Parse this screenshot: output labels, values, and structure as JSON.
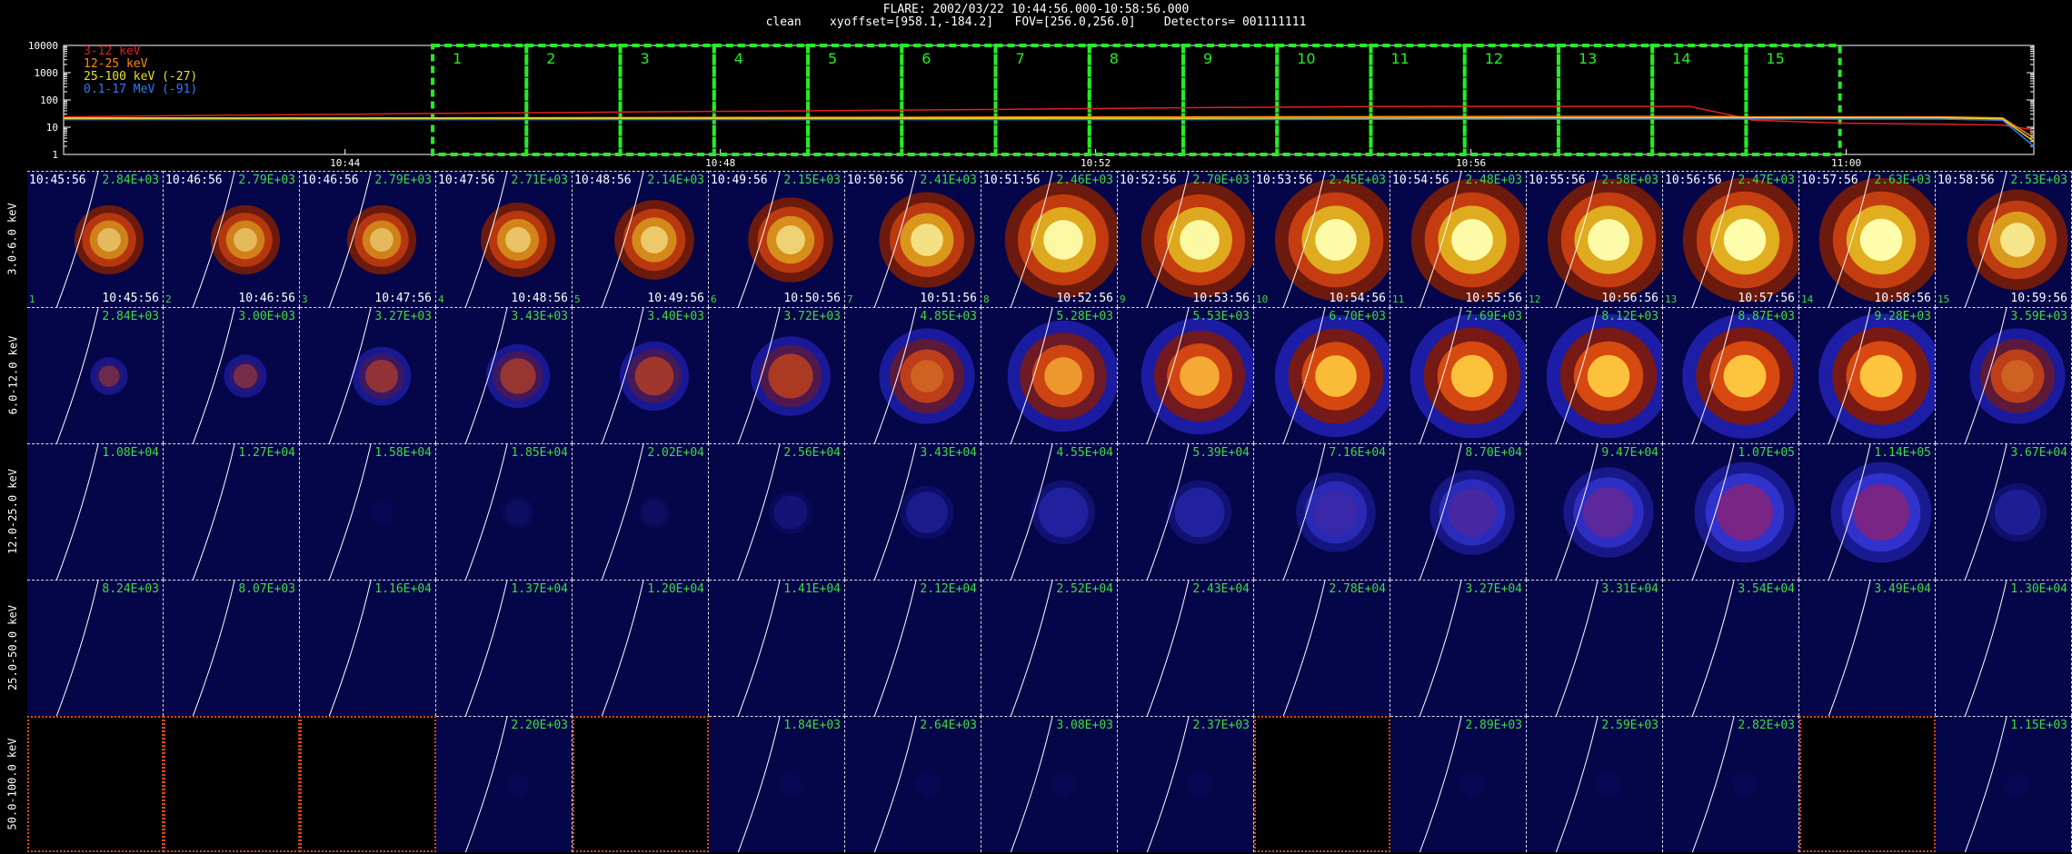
{
  "header": {
    "line1": "FLARE: 2002/03/22 10:44:56.000-10:58:56.000",
    "line2": "clean    xyoffset=[958.1,-184.2]   FOV=[256.0,256.0]    Detectors= 001111111"
  },
  "chart_data": [
    {
      "type": "line",
      "title": "",
      "xlabel": "",
      "ylabel": "",
      "yscale": "log",
      "ylim": [
        1,
        10000
      ],
      "ytick_labels": [
        "1",
        "10",
        "100",
        "1000",
        "10000"
      ],
      "xtick_labels": [
        "10:44",
        "10:48",
        "10:52",
        "10:56",
        "11:00"
      ],
      "xlim": [
        "10:41",
        "11:02"
      ],
      "legend_position": "top-left",
      "series": [
        {
          "name": "3-12 keV",
          "color": "#e02020",
          "x": [
            "10:41",
            "10:43",
            "10:45",
            "10:47",
            "10:49",
            "10:51",
            "10:53",
            "10:55",
            "10:57",
            "10:58:20",
            "10:58:50",
            "10:59",
            "11:00",
            "11:01",
            "11:01:40",
            "11:02"
          ],
          "y": [
            24,
            28,
            32,
            36,
            40,
            45,
            52,
            57,
            58,
            58,
            25,
            18,
            14,
            13,
            12,
            8
          ]
        },
        {
          "name": "12-25 keV",
          "color": "#ff8c00",
          "x": [
            "10:41",
            "10:45",
            "10:49",
            "10:53",
            "10:57",
            "10:58:30",
            "10:59",
            "11:01",
            "11:01:40",
            "11:02"
          ],
          "y": [
            22,
            22,
            23,
            24,
            25,
            25,
            24,
            24,
            22,
            4
          ]
        },
        {
          "name": "25-100 keV (-27)",
          "color": "#e8e020",
          "x": [
            "10:41",
            "10:45",
            "10:49",
            "10:53",
            "10:57",
            "10:59",
            "11:01",
            "11:01:40",
            "11:02"
          ],
          "y": [
            21,
            21,
            21,
            21,
            22,
            22,
            22,
            20,
            3
          ]
        },
        {
          "name": "0.1-17 MeV (-91)",
          "color": "#2a7cff",
          "x": [
            "10:41",
            "10:45",
            "10:49",
            "10:53",
            "10:57",
            "10:59",
            "11:01",
            "11:01:40",
            "11:02"
          ],
          "y": [
            19,
            19,
            19,
            19,
            20,
            20,
            20,
            18,
            2
          ]
        }
      ],
      "annotations": {
        "intervals": [
          "1",
          "2",
          "3",
          "4",
          "5",
          "6",
          "7",
          "8",
          "9",
          "10",
          "11",
          "12",
          "13",
          "14",
          "15"
        ],
        "interval_start": "10:44:56",
        "interval_minutes": 1,
        "interval_color": "#22ee22"
      }
    },
    {
      "type": "heatmap",
      "title": "",
      "rows": [
        {
          "label": "3.0-6.0 keV",
          "colormap": "yellow",
          "values": [
            "2.84E+03",
            "2.79E+03",
            "2.79E+03",
            "2.71E+03",
            "2.14E+03",
            "2.15E+03",
            "2.41E+03",
            "2.46E+03",
            "2.70E+03",
            "2.45E+03",
            "2.48E+03",
            "2.58E+03",
            "2.47E+03",
            "2.63E+03",
            "2.53E+03"
          ],
          "intensity": [
            0.45,
            0.45,
            0.45,
            0.5,
            0.55,
            0.6,
            0.7,
            0.9,
            0.9,
            0.95,
            0.95,
            0.95,
            0.97,
            0.97,
            0.75
          ]
        },
        {
          "label": "6.0-12.0 keV",
          "colormap": "red",
          "values": [
            "2.84E+03",
            "3.00E+03",
            "3.27E+03",
            "3.43E+03",
            "3.40E+03",
            "3.72E+03",
            "4.85E+03",
            "5.28E+03",
            "5.53E+03",
            "6.70E+03",
            "7.69E+03",
            "8.12E+03",
            "8.87E+03",
            "9.28E+03",
            "3.59E+03"
          ],
          "intensity": [
            0.15,
            0.2,
            0.35,
            0.4,
            0.45,
            0.55,
            0.7,
            0.85,
            0.9,
            0.95,
            0.97,
            0.97,
            0.98,
            0.98,
            0.7
          ]
        },
        {
          "label": "12.0-25.0 keV",
          "colormap": "blue",
          "values": [
            "1.08E+04",
            "1.27E+04",
            "1.58E+04",
            "1.85E+04",
            "2.02E+04",
            "2.56E+04",
            "3.43E+04",
            "4.55E+04",
            "5.39E+04",
            "7.16E+04",
            "8.70E+04",
            "9.47E+04",
            "1.07E+05",
            "1.14E+05",
            "3.67E+04"
          ],
          "intensity": [
            0.0,
            0.0,
            0.05,
            0.1,
            0.1,
            0.2,
            0.3,
            0.4,
            0.4,
            0.55,
            0.6,
            0.65,
            0.75,
            0.75,
            0.35
          ]
        },
        {
          "label": "25.0-50.0 keV",
          "colormap": "blue",
          "values": [
            "8.24E+03",
            "8.07E+03",
            "1.16E+04",
            "1.37E+04",
            "1.20E+04",
            "1.41E+04",
            "2.12E+04",
            "2.52E+04",
            "2.43E+04",
            "2.78E+04",
            "3.27E+04",
            "3.31E+04",
            "3.54E+04",
            "3.49E+04",
            "1.30E+04"
          ],
          "intensity": [
            0,
            0,
            0,
            0,
            0,
            0,
            0,
            0,
            0,
            0,
            0,
            0,
            0,
            0,
            0
          ]
        },
        {
          "label": "50.0-100.0 keV",
          "colormap": "blue",
          "values": [
            "",
            "",
            "",
            "2.20E+03",
            "",
            "1.84E+03",
            "2.64E+03",
            "3.08E+03",
            "2.37E+03",
            "",
            "2.89E+03",
            "2.59E+03",
            "2.82E+03",
            "",
            "1.15E+03"
          ],
          "intensity": [
            0,
            0,
            0,
            0.05,
            0,
            0.05,
            0.05,
            0.05,
            0.05,
            0,
            0.05,
            0.05,
            0.05,
            0,
            0.05
          ]
        }
      ],
      "top_times": [
        "10:45:56",
        "10:46:56",
        "10:46:56",
        "10:47:56",
        "10:48:56",
        "10:49:56",
        "10:50:56",
        "10:51:56",
        "10:52:56",
        "10:53:56",
        "10:54:56",
        "10:55:56",
        "10:56:56",
        "10:57:56",
        "10:58:56"
      ],
      "bottom_times": [
        "10:45:56",
        "10:46:56",
        "10:47:56",
        "10:48:56",
        "10:49:56",
        "10:50:56",
        "10:51:56",
        "10:52:56",
        "10:53:56",
        "10:54:56",
        "10:55:56",
        "10:56:56",
        "10:57:56",
        "10:58:56",
        "10:59:56"
      ],
      "interval_numbers": [
        "1",
        "2",
        "3",
        "4",
        "5",
        "6",
        "7",
        "8",
        "9",
        "10",
        "11",
        "12",
        "13",
        "14",
        "15"
      ]
    }
  ]
}
